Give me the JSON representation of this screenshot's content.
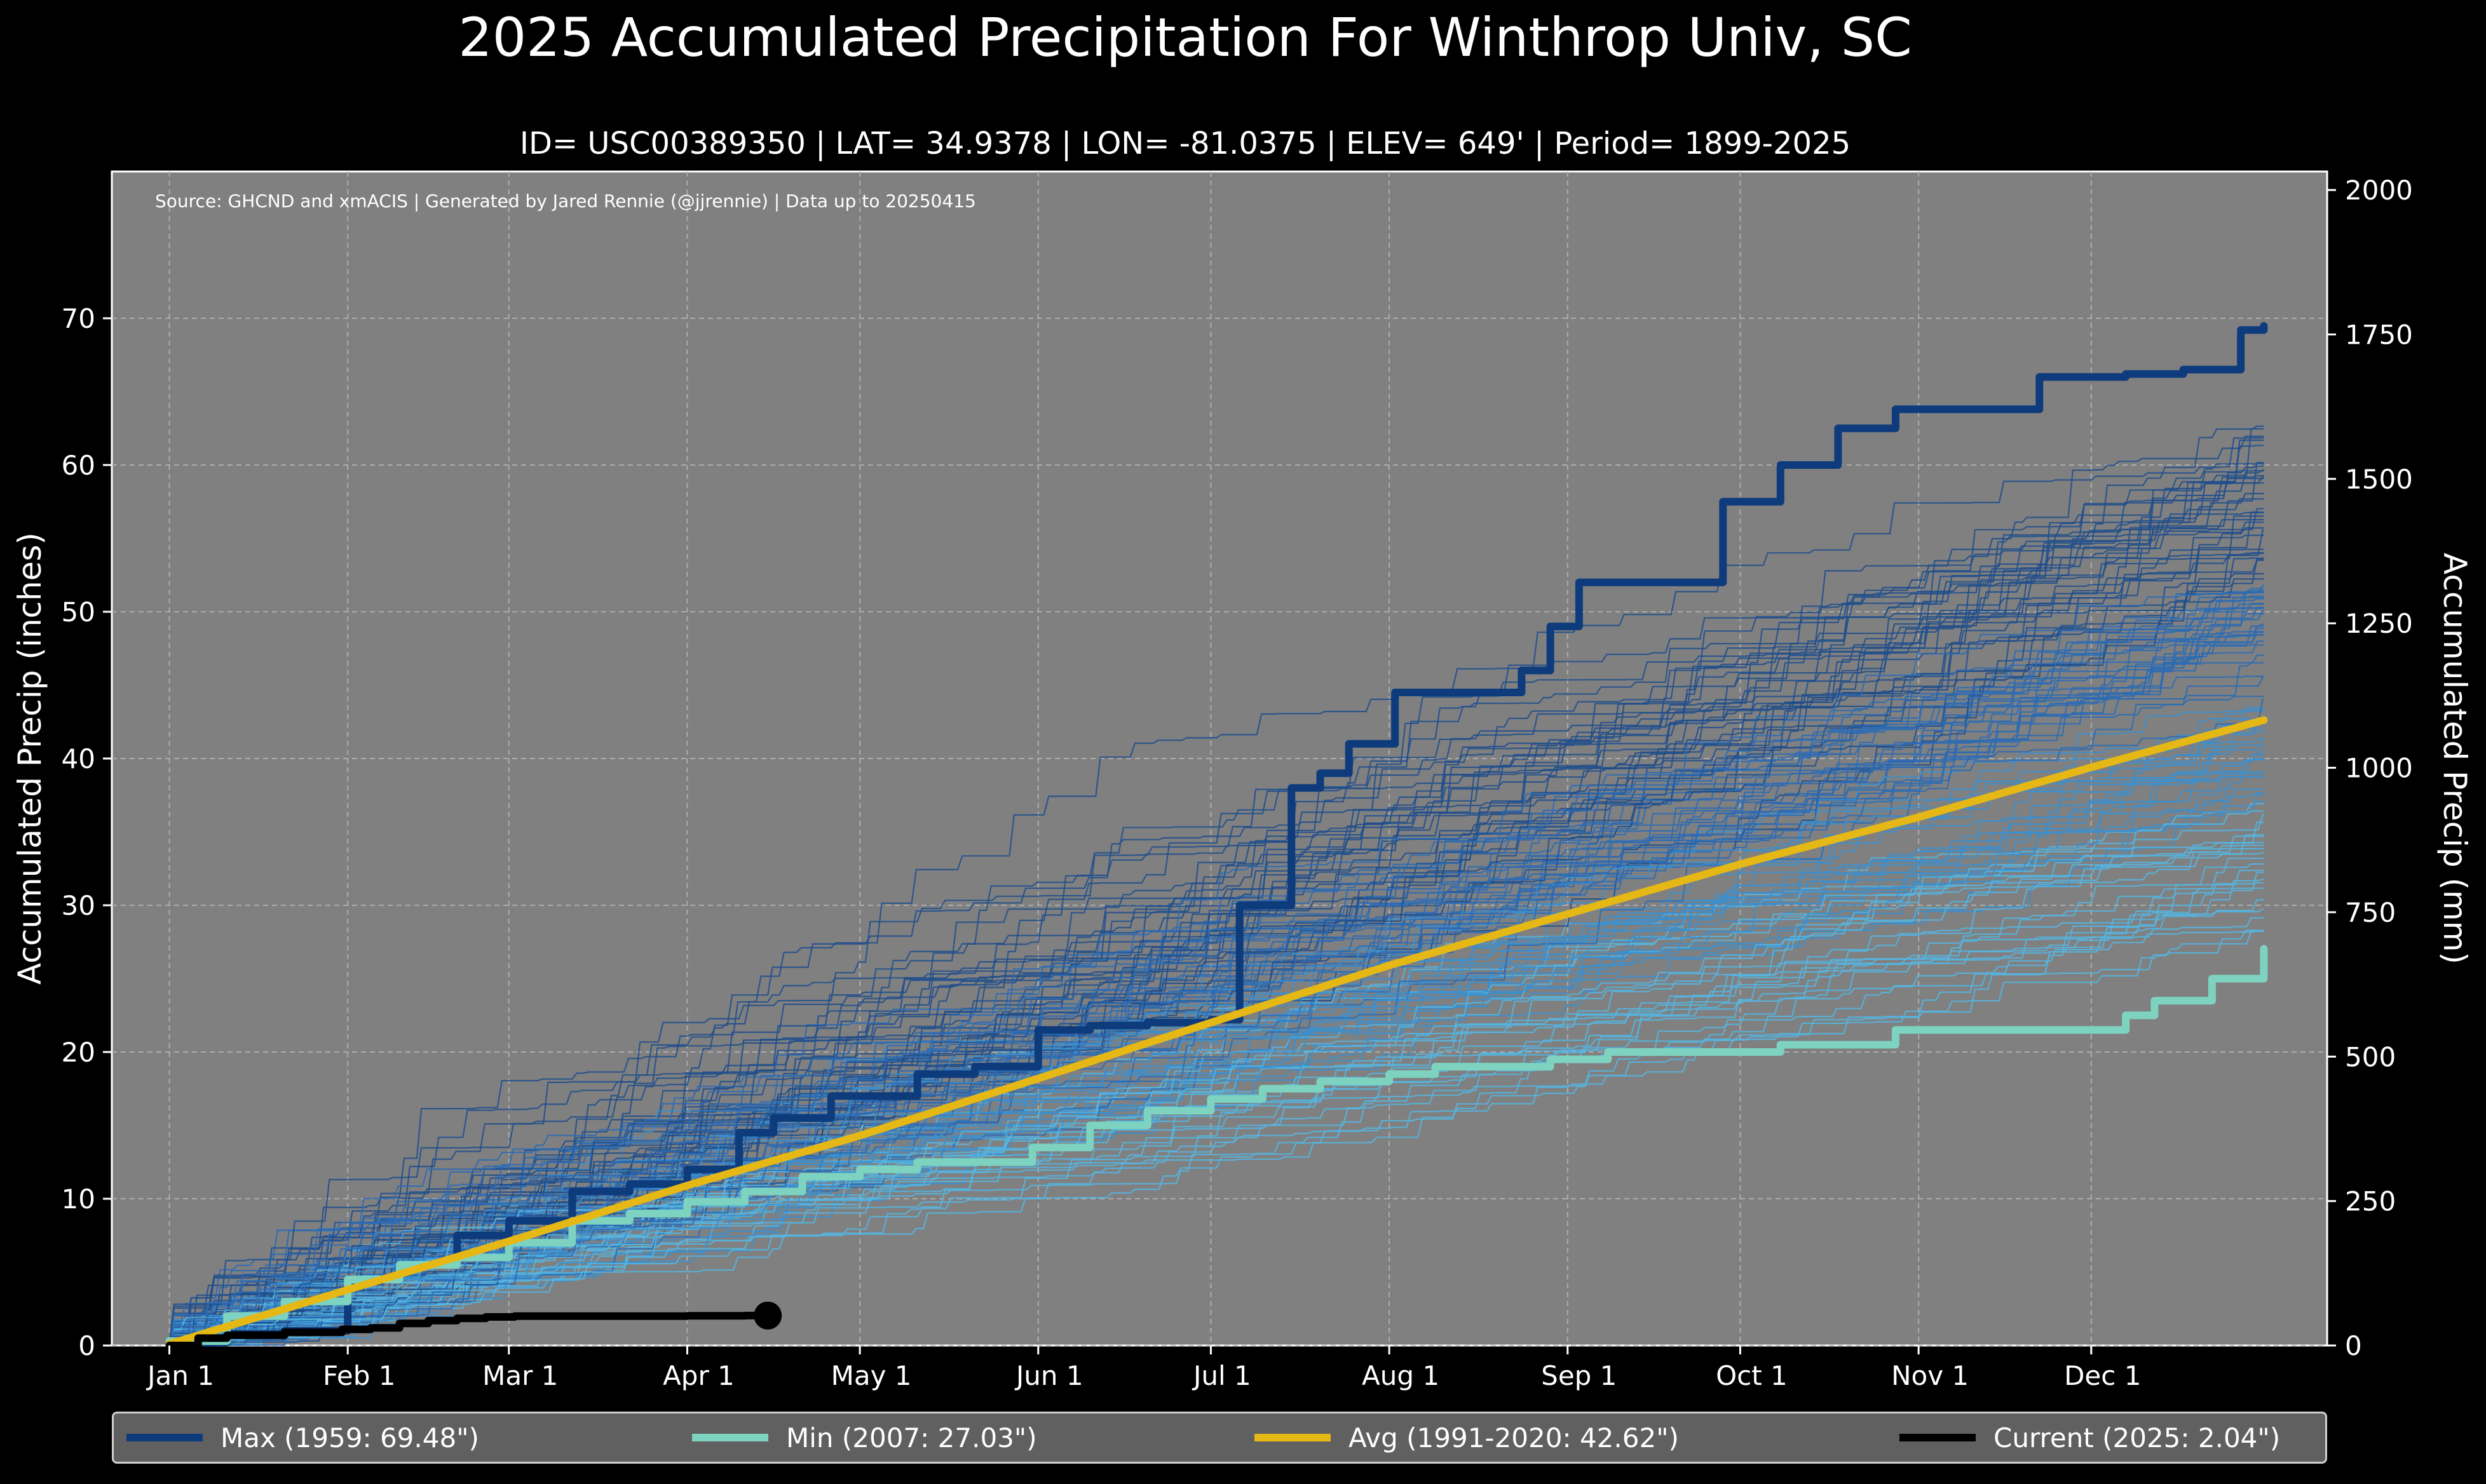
{
  "chart_data": {
    "type": "line",
    "title": "2025 Accumulated Precipitation For Winthrop Univ, SC",
    "subtitle": "ID= USC00389350 | LAT= 34.9378 | LON= -81.0375 | ELEV= 649' | Period= 1899-2025",
    "source": "Source: GHCND and xmACIS | Generated by Jared Rennie (@jjrennie) | Data up to 20250415",
    "ylabel": "Accumulated Precip (inches)",
    "ylabel_right": "Accumulated Precip (mm)",
    "ylim": [
      0,
      80
    ],
    "ylim_right_mm": [
      0,
      2032
    ],
    "yticks": [
      0,
      10,
      20,
      30,
      40,
      50,
      60,
      70
    ],
    "yticks_right": [
      0,
      250,
      500,
      750,
      1000,
      1250,
      1500,
      1750,
      2000
    ],
    "xlim": [
      -10,
      375
    ],
    "xticks": [
      {
        "label": "Jan 1",
        "day": 0
      },
      {
        "label": "Feb 1",
        "day": 31
      },
      {
        "label": "Mar 1",
        "day": 59
      },
      {
        "label": "Apr 1",
        "day": 90
      },
      {
        "label": "May 1",
        "day": 120
      },
      {
        "label": "Jun 1",
        "day": 151
      },
      {
        "label": "Jul 1",
        "day": 181
      },
      {
        "label": "Aug 1",
        "day": 212
      },
      {
        "label": "Sep 1",
        "day": 243
      },
      {
        "label": "Oct 1",
        "day": 273
      },
      {
        "label": "Nov 1",
        "day": 304
      },
      {
        "label": "Dec 1",
        "day": 334
      }
    ],
    "grid": true,
    "legend_position": "bottom",
    "historical_years": {
      "description": "individual years 1899-2024, thin blue lines",
      "final_range": [
        28,
        64
      ],
      "colors": [
        "#1f4e8c",
        "#2a6bb5",
        "#3a8fd0",
        "#55b6e3"
      ]
    },
    "series": [
      {
        "name": "Max",
        "legend": "Max (1959:  69.48\")",
        "color": "#0d3b7c",
        "x": [
          0,
          10,
          20,
          31,
          40,
          50,
          59,
          70,
          80,
          90,
          99,
          105,
          115,
          120,
          130,
          140,
          151,
          160,
          170,
          181,
          186,
          195,
          200,
          205,
          213,
          225,
          235,
          240,
          245,
          255,
          265,
          270,
          275,
          280,
          290,
          300,
          320,
          325,
          340,
          350,
          360,
          364
        ],
        "y": [
          0.2,
          0.8,
          1.0,
          4.5,
          5.5,
          7.5,
          8.5,
          10.5,
          11.0,
          12.0,
          14.5,
          15.5,
          17.0,
          17.0,
          18.5,
          19.0,
          21.5,
          21.8,
          22.0,
          22.2,
          30.0,
          38.0,
          39.0,
          41.0,
          44.5,
          44.5,
          46.0,
          49.0,
          52.0,
          52.0,
          52.0,
          57.5,
          57.5,
          60.0,
          62.5,
          63.8,
          63.8,
          66.0,
          66.2,
          66.5,
          69.2,
          69.48
        ]
      },
      {
        "name": "Min",
        "legend": "Min (2007:  27.03\")",
        "color": "#7dd3c0",
        "x": [
          0,
          10,
          20,
          31,
          40,
          50,
          59,
          70,
          80,
          90,
          100,
          110,
          120,
          130,
          150,
          160,
          170,
          181,
          190,
          200,
          212,
          220,
          240,
          250,
          280,
          300,
          340,
          345,
          355,
          364
        ],
        "y": [
          0.3,
          2.0,
          3.0,
          4.5,
          5.5,
          6.0,
          7.0,
          8.5,
          9.0,
          9.8,
          10.5,
          11.5,
          12.0,
          12.5,
          13.5,
          15.0,
          16.0,
          16.8,
          17.5,
          18.0,
          18.5,
          19.0,
          19.5,
          20.0,
          20.5,
          21.5,
          22.5,
          23.5,
          25.0,
          27.03
        ]
      },
      {
        "name": "Avg",
        "legend": "Avg (1991-2020:  42.62\")",
        "color": "#e5b815",
        "x": [
          0,
          31,
          59,
          90,
          120,
          151,
          181,
          212,
          243,
          273,
          304,
          334,
          364
        ],
        "y": [
          0.1,
          3.8,
          7.1,
          10.9,
          14.3,
          18.2,
          22.0,
          25.9,
          29.4,
          32.8,
          36.0,
          39.4,
          42.62
        ]
      },
      {
        "name": "Current",
        "legend": "Current (2025:   2.04\")",
        "color": "#000000",
        "x": [
          0,
          5,
          10,
          20,
          30,
          35,
          40,
          45,
          50,
          55,
          60,
          70,
          80,
          90,
          100,
          104
        ],
        "y": [
          0.0,
          0.5,
          0.7,
          0.9,
          1.1,
          1.2,
          1.5,
          1.7,
          1.85,
          1.95,
          2.0,
          2.0,
          2.0,
          2.02,
          2.04,
          2.04
        ]
      }
    ]
  }
}
